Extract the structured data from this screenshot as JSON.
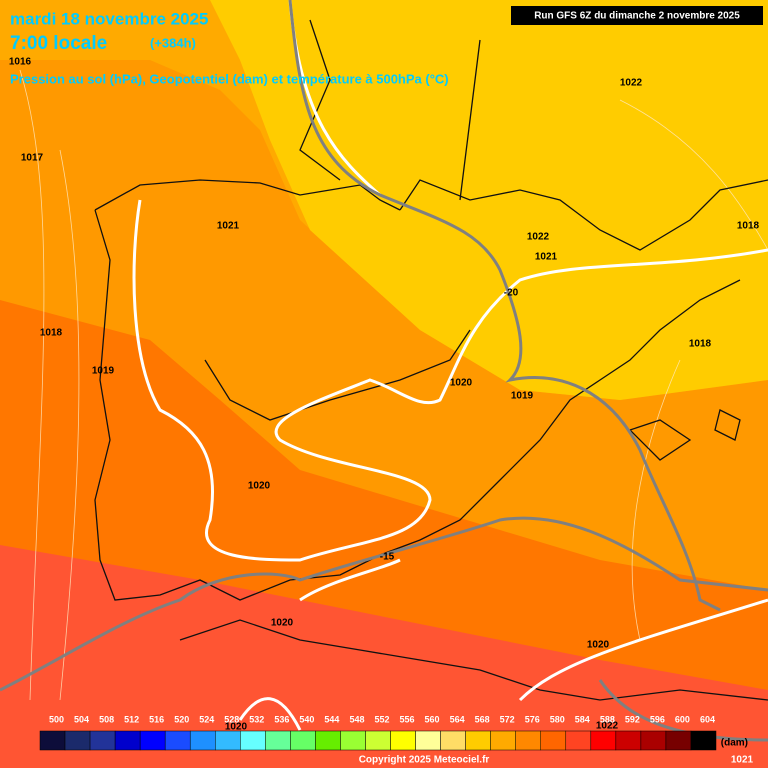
{
  "header": {
    "title": "mardi 18 novembre 2025",
    "time": "7:00 locale",
    "lead": "(+384h)",
    "subtitle": "Pression au sol (hPa), Geopotentiel (dam) et température à 500hPa (°C)",
    "run": "Run GFS 6Z du dimanche 2 novembre 2025"
  },
  "map_labels": [
    "1016",
    "1017",
    "1022",
    "1018",
    "1021",
    "1022",
    "1021",
    "-20",
    "1018",
    "1019",
    "1018",
    "1020",
    "1019",
    "1020",
    "-15",
    "1020",
    "1020",
    "1022",
    "1020"
  ],
  "legend": {
    "levels": [
      500,
      504,
      508,
      512,
      516,
      520,
      524,
      528,
      532,
      536,
      540,
      544,
      548,
      552,
      556,
      560,
      564,
      568,
      572,
      576,
      580,
      584,
      588,
      592,
      596,
      600,
      604
    ],
    "colors": [
      "#0d0d3a",
      "#1b2a6b",
      "#223399",
      "#0000cc",
      "#0000ff",
      "#1a4cff",
      "#1e90ff",
      "#33bbff",
      "#66ffff",
      "#66ff99",
      "#66ff66",
      "#66ee00",
      "#99ff33",
      "#ccff33",
      "#ffff00",
      "#ffff99",
      "#ffdd66",
      "#ffcc00",
      "#ffaa00",
      "#ff8800",
      "#ff6600",
      "#ff4422",
      "#ff0000",
      "#cc0000",
      "#aa0000",
      "#770000",
      "#000000"
    ],
    "unit": "(dam)"
  },
  "footer": {
    "copyright": "Copyright 2025 Meteociel.fr",
    "corner": "1021"
  }
}
